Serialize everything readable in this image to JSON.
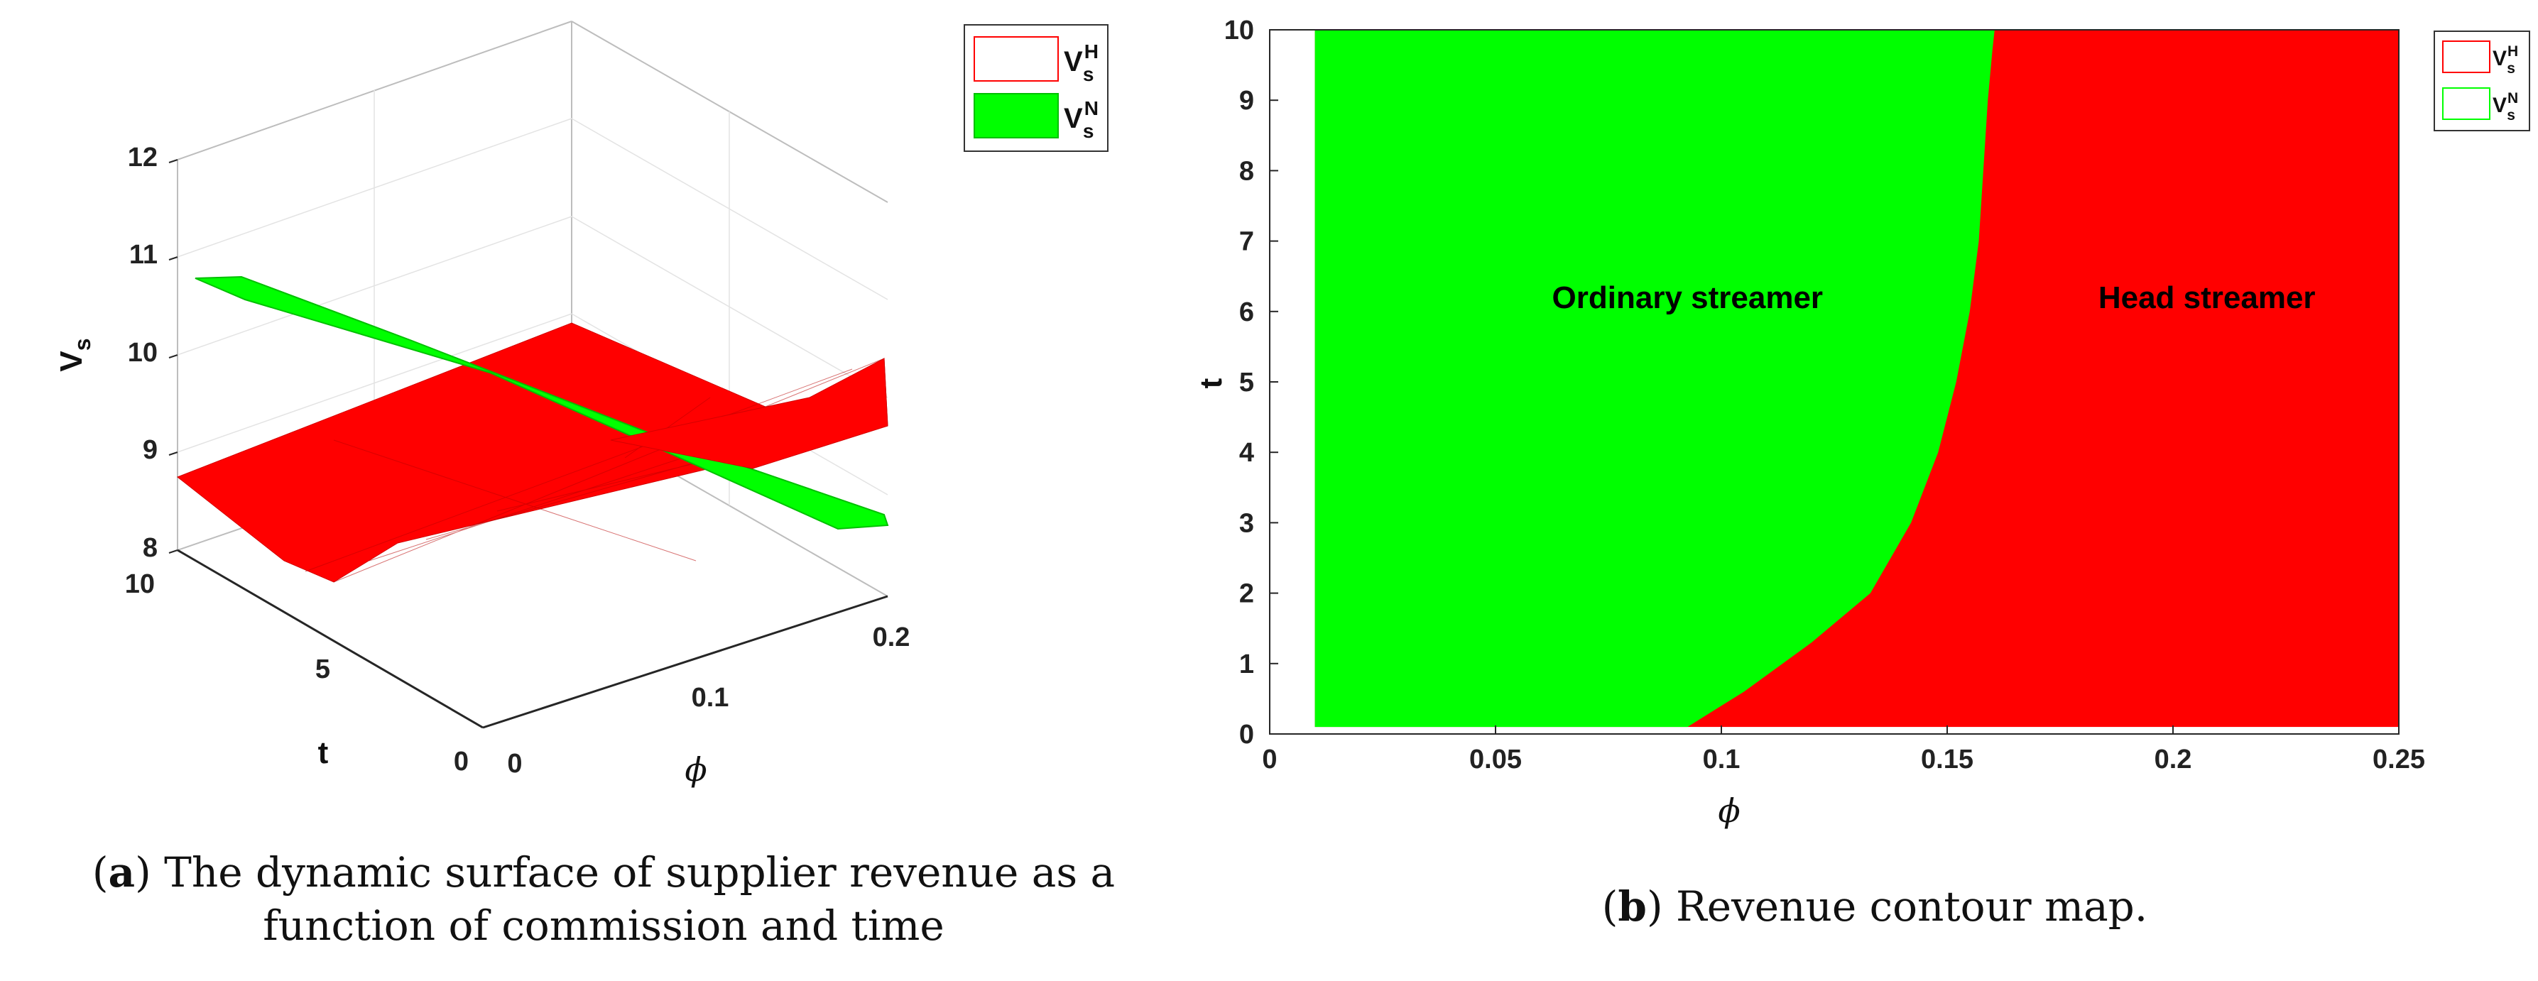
{
  "chart_data": [
    {
      "type": "surface",
      "panel_letter": "a",
      "caption": "The dynamic surface of supplier revenue as a function of commission and time",
      "xlabel": "ϕ",
      "ylabel": "t",
      "zlabel": "V",
      "zlabel_sub": "s",
      "xlim": [
        0,
        0.2
      ],
      "ylim": [
        0,
        10
      ],
      "zlim": [
        8,
        12
      ],
      "xticks": [
        "0",
        "0.1",
        "0.2"
      ],
      "yticks": [
        "0",
        "5",
        "10"
      ],
      "zticks": [
        "8",
        "9",
        "10",
        "11",
        "12"
      ],
      "series": [
        {
          "name": "V",
          "sub": "s",
          "sup": "H",
          "color": "#ff0000",
          "surface_samples": [
            {
              "phi": 0.0,
              "t": 0,
              "v": 9.1
            },
            {
              "phi": 0.2,
              "t": 0,
              "v": 9.8
            },
            {
              "phi": 0.0,
              "t": 10,
              "v": 8.7
            },
            {
              "phi": 0.2,
              "t": 10,
              "v": 9.3
            },
            {
              "phi": 0.02,
              "t": 5,
              "v": 8.05
            }
          ]
        },
        {
          "name": "V",
          "sub": "s",
          "sup": "N",
          "color": "#00ff00",
          "surface_samples": [
            {
              "phi": 0.0,
              "t": 10,
              "v": 10.8
            },
            {
              "phi": 0.2,
              "t": 0,
              "v": 8.4
            },
            {
              "phi": 0.1,
              "t": 5,
              "v": 9.1
            }
          ]
        }
      ],
      "legend_position": "top-right"
    },
    {
      "type": "area",
      "panel_letter": "b",
      "caption": "Revenue contour map.",
      "xlabel": "ϕ",
      "ylabel": "t",
      "xlim": [
        0,
        0.25
      ],
      "ylim": [
        0,
        10
      ],
      "xticks": [
        "0",
        "0.05",
        "0.1",
        "0.15",
        "0.2",
        "0.25"
      ],
      "yticks": [
        "0",
        "1",
        "2",
        "3",
        "4",
        "5",
        "6",
        "7",
        "8",
        "9",
        "10"
      ],
      "data_domain": {
        "phi": [
          0.01,
          0.25
        ],
        "t": [
          0.1,
          10
        ]
      },
      "boundary": {
        "phi": [
          0.0925,
          0.105,
          0.12,
          0.133,
          0.142,
          0.148,
          0.152,
          0.155,
          0.157,
          0.158,
          0.159,
          0.16,
          0.1605
        ],
        "t": [
          0.1,
          0.6,
          1.3,
          2.0,
          3.0,
          4.0,
          5.0,
          6.0,
          7.0,
          8.0,
          9.0,
          9.7,
          10.0
        ]
      },
      "region_labels": [
        "Ordinary streamer",
        "Head streamer"
      ],
      "series": [
        {
          "name": "V",
          "sub": "s",
          "sup": "H",
          "color": "#ff0000"
        },
        {
          "name": "V",
          "sub": "s",
          "sup": "N",
          "color": "#00ff00"
        }
      ],
      "legend_position": "top-right"
    }
  ]
}
